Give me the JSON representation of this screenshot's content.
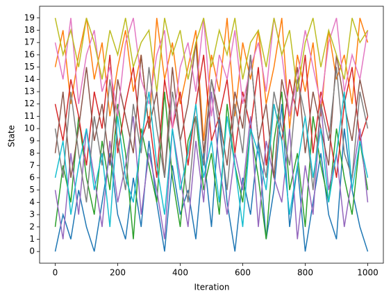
{
  "chart_data": {
    "type": "line",
    "xlabel": "Iteration",
    "ylabel": "State",
    "x": [
      0,
      25,
      50,
      75,
      100,
      125,
      150,
      175,
      200,
      225,
      250,
      275,
      300,
      325,
      350,
      375,
      400,
      425,
      450,
      475,
      500,
      525,
      550,
      575,
      600,
      625,
      650,
      675,
      700,
      725,
      750,
      775,
      800,
      825,
      850,
      875,
      900,
      925,
      950,
      975,
      1000
    ],
    "series": [
      {
        "color": "#1f77b4",
        "values": [
          0,
          3,
          1,
          5,
          2,
          0,
          4,
          8,
          3,
          1,
          6,
          2,
          9,
          4,
          0,
          7,
          3,
          5,
          1,
          8,
          2,
          11,
          4,
          0,
          6,
          3,
          9,
          1,
          5,
          12,
          2,
          7,
          0,
          4,
          8,
          3,
          1,
          10,
          5,
          2,
          0
        ]
      },
      {
        "color": "#ff7f0e",
        "values": [
          15,
          18,
          12,
          16,
          19,
          14,
          17,
          11,
          15,
          18,
          13,
          16,
          10,
          19,
          14,
          17,
          12,
          15,
          18,
          9,
          16,
          13,
          19,
          11,
          17,
          14,
          18,
          12,
          15,
          19,
          10,
          16,
          13,
          17,
          11,
          18,
          14,
          16,
          12,
          19,
          17
        ]
      },
      {
        "color": "#2ca02c",
        "values": [
          2,
          7,
          4,
          11,
          6,
          3,
          9,
          5,
          12,
          8,
          1,
          10,
          7,
          4,
          13,
          6,
          2,
          9,
          11,
          5,
          8,
          3,
          12,
          7,
          4,
          10,
          6,
          1,
          9,
          13,
          5,
          8,
          2,
          11,
          7,
          4,
          10,
          6,
          3,
          9,
          5
        ]
      },
      {
        "color": "#d62728",
        "values": [
          12,
          9,
          14,
          11,
          7,
          13,
          10,
          16,
          8,
          12,
          15,
          9,
          11,
          6,
          14,
          10,
          13,
          7,
          12,
          16,
          9,
          11,
          14,
          8,
          13,
          10,
          15,
          7,
          12,
          9,
          14,
          11,
          16,
          8,
          13,
          10,
          6,
          12,
          15,
          9,
          11
        ]
      },
      {
        "color": "#9467bd",
        "values": [
          5,
          1,
          8,
          3,
          10,
          6,
          2,
          9,
          4,
          7,
          11,
          3,
          8,
          5,
          1,
          10,
          6,
          2,
          9,
          4,
          13,
          7,
          3,
          8,
          5,
          11,
          2,
          9,
          6,
          4,
          10,
          1,
          7,
          3,
          12,
          5,
          8,
          2,
          6,
          10,
          4
        ]
      },
      {
        "color": "#8c564b",
        "values": [
          8,
          13,
          6,
          10,
          15,
          9,
          12,
          7,
          14,
          11,
          8,
          16,
          10,
          13,
          6,
          15,
          9,
          12,
          17,
          8,
          14,
          11,
          7,
          13,
          10,
          16,
          9,
          12,
          6,
          14,
          11,
          15,
          8,
          13,
          10,
          7,
          16,
          12,
          9,
          14,
          11
        ]
      },
      {
        "color": "#e377c2",
        "values": [
          17,
          14,
          19,
          12,
          16,
          18,
          13,
          15,
          11,
          17,
          19,
          14,
          12,
          16,
          18,
          10,
          15,
          17,
          13,
          19,
          11,
          16,
          14,
          18,
          12,
          15,
          17,
          13,
          19,
          16,
          11,
          14,
          18,
          15,
          12,
          17,
          19,
          13,
          16,
          14,
          18
        ]
      },
      {
        "color": "#7f7f7f",
        "values": [
          10,
          6,
          13,
          8,
          4,
          11,
          7,
          14,
          9,
          5,
          12,
          8,
          15,
          10,
          6,
          13,
          9,
          4,
          11,
          7,
          14,
          10,
          5,
          12,
          8,
          16,
          9,
          6,
          13,
          10,
          7,
          14,
          11,
          5,
          12,
          9,
          15,
          8,
          6,
          13,
          10
        ]
      },
      {
        "color": "#bcbd22",
        "values": [
          19,
          16,
          18,
          15,
          19,
          17,
          14,
          18,
          16,
          19,
          15,
          17,
          18,
          13,
          19,
          16,
          18,
          14,
          17,
          19,
          15,
          18,
          16,
          19,
          14,
          17,
          18,
          15,
          19,
          16,
          18,
          13,
          17,
          19,
          15,
          18,
          16,
          14,
          19,
          17,
          18
        ]
      },
      {
        "color": "#17becf",
        "values": [
          6,
          9,
          3,
          7,
          10,
          5,
          8,
          2,
          11,
          6,
          4,
          9,
          13,
          7,
          3,
          10,
          5,
          8,
          12,
          6,
          9,
          4,
          11,
          7,
          2,
          10,
          8,
          5,
          12,
          9,
          3,
          7,
          11,
          6,
          10,
          4,
          8,
          13,
          5,
          9,
          6
        ]
      }
    ],
    "xlim": [
      -50,
      1050
    ],
    "ylim": [
      -0.95,
      19.95
    ],
    "xticks": [
      0,
      200,
      400,
      600,
      800,
      1000
    ],
    "yticks": [
      0,
      1,
      2,
      3,
      4,
      5,
      6,
      7,
      8,
      9,
      10,
      11,
      12,
      13,
      14,
      15,
      16,
      17,
      18,
      19
    ]
  }
}
